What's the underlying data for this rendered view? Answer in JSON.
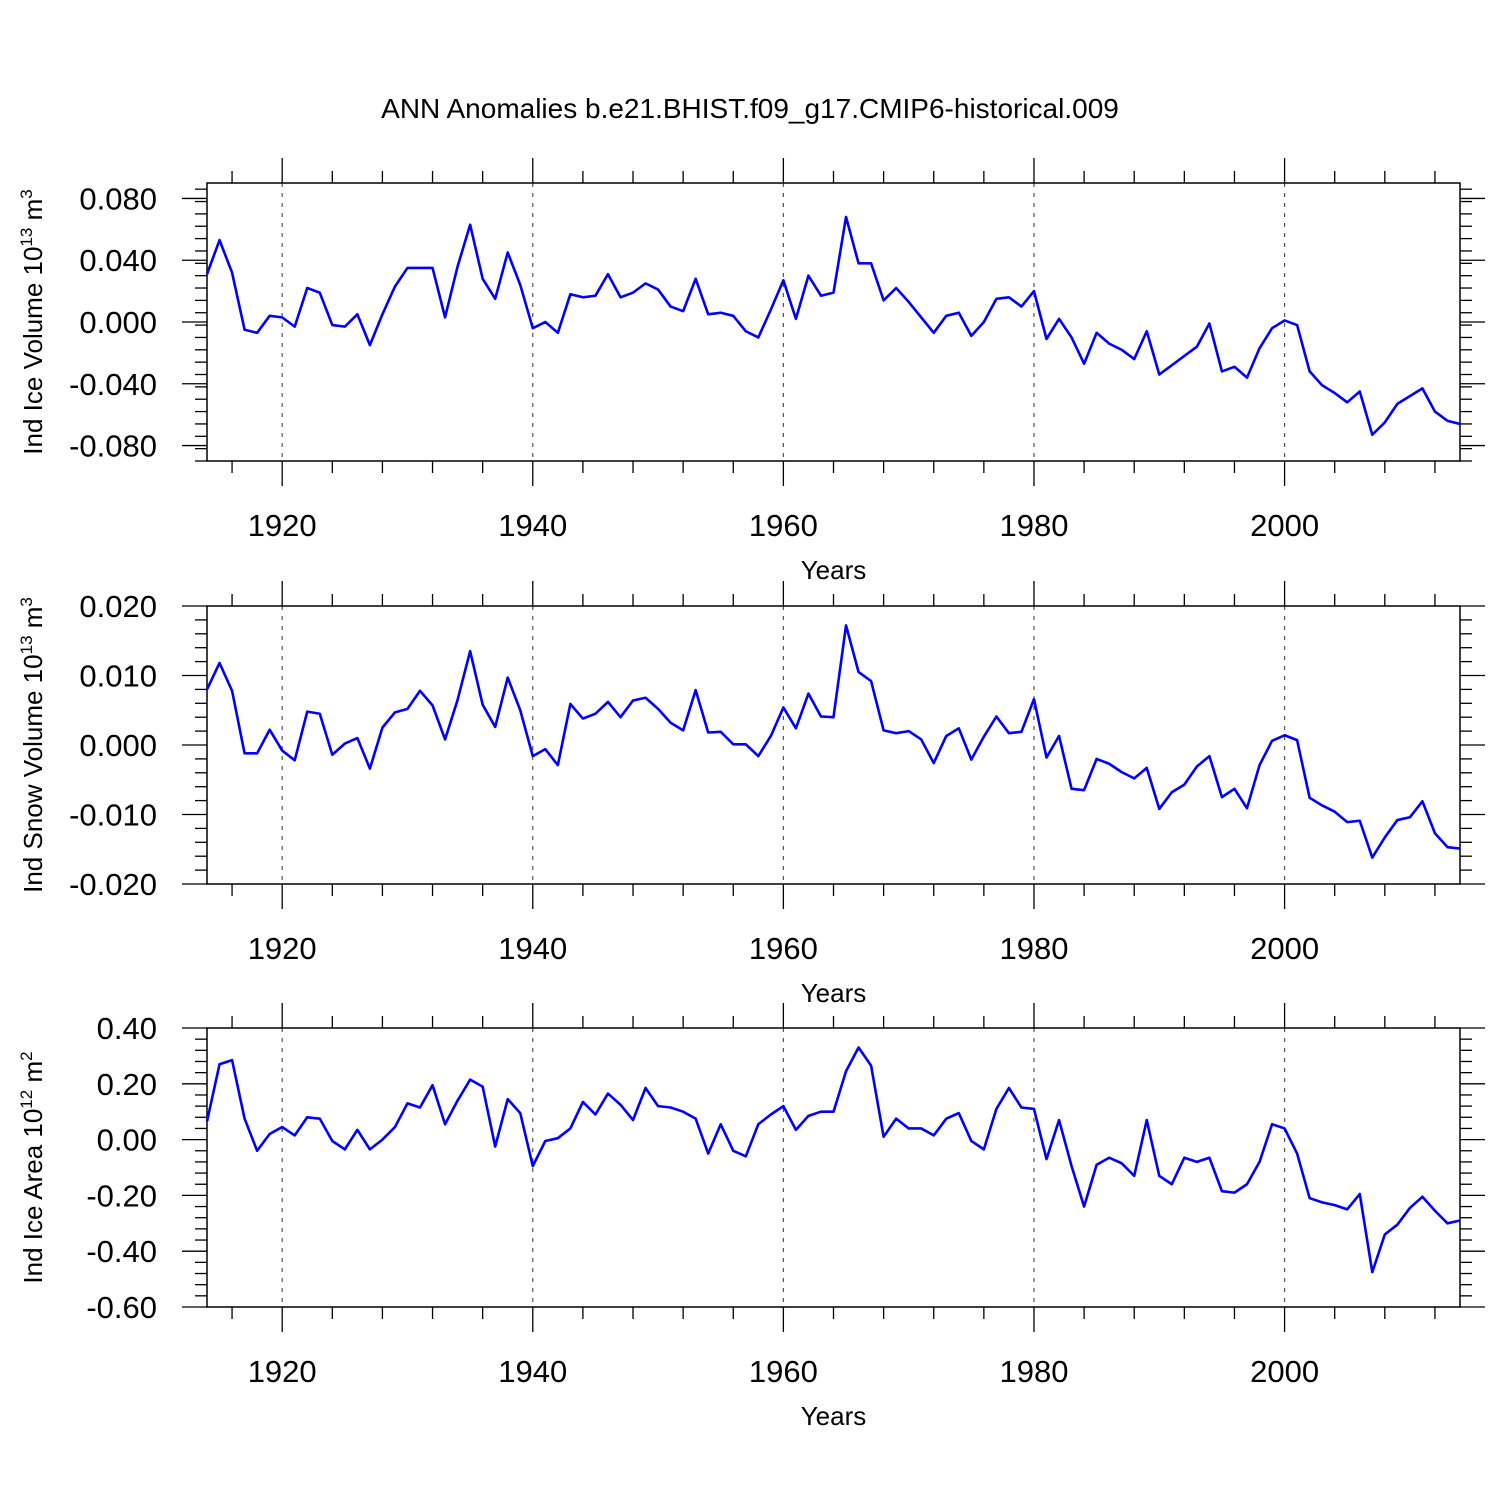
{
  "title": "ANN Anomalies b.e21.BHIST.f09_g17.CMIP6-historical.009",
  "series_color": "#0000ff",
  "chart_data": [
    {
      "type": "line",
      "ylabel_main": "Ind Ice Volume 10",
      "ylabel_sup": "13",
      "ylabel_unit": " m",
      "ylabel_unit_sup": "3",
      "xlabel": "Years",
      "xlim": [
        1914,
        2014
      ],
      "ylim": [
        -0.09,
        0.09
      ],
      "yticks": [
        -0.08,
        -0.04,
        0.0,
        0.04,
        0.08
      ],
      "ytick_labels": [
        "-0.080",
        "-0.040",
        "0.000",
        "0.040",
        "0.080"
      ],
      "xticks": [
        1920,
        1940,
        1960,
        1980,
        2000
      ],
      "xtick_labels": [
        "1920",
        "1940",
        "1960",
        "1980",
        "2000"
      ],
      "grid": "dashed vertical at major year ticks",
      "x_start": 1914,
      "values": [
        0.031,
        0.053,
        0.032,
        -0.005,
        -0.007,
        0.004,
        0.003,
        -0.003,
        0.022,
        0.019,
        -0.002,
        -0.003,
        0.005,
        -0.015,
        0.005,
        0.023,
        0.035,
        0.035,
        0.035,
        0.003,
        0.036,
        0.063,
        0.028,
        0.015,
        0.045,
        0.024,
        -0.004,
        0.0,
        -0.007,
        0.018,
        0.016,
        0.017,
        0.031,
        0.016,
        0.019,
        0.025,
        0.021,
        0.01,
        0.007,
        0.028,
        0.005,
        0.006,
        0.004,
        -0.006,
        -0.01,
        0.008,
        0.027,
        0.002,
        0.03,
        0.017,
        0.019,
        0.068,
        0.038,
        0.038,
        0.014,
        0.022,
        0.013,
        0.003,
        -0.007,
        0.004,
        0.006,
        -0.009,
        0.0,
        0.015,
        0.016,
        0.01,
        0.02,
        -0.011,
        0.002,
        -0.01,
        -0.027,
        -0.007,
        -0.014,
        -0.018,
        -0.024,
        -0.006,
        -0.034,
        -0.028,
        -0.022,
        -0.016,
        -0.001,
        -0.032,
        -0.029,
        -0.036,
        -0.017,
        -0.004,
        0.001,
        -0.002,
        -0.032,
        -0.041,
        -0.046,
        -0.052,
        -0.045,
        -0.073,
        -0.065,
        -0.053,
        -0.048,
        -0.043,
        -0.058,
        -0.064,
        -0.066
      ]
    },
    {
      "type": "line",
      "ylabel_main": "Ind Snow Volume 10",
      "ylabel_sup": "13",
      "ylabel_unit": " m",
      "ylabel_unit_sup": "3",
      "xlabel": "Years",
      "xlim": [
        1914,
        2014
      ],
      "ylim": [
        -0.02,
        0.02
      ],
      "yticks": [
        -0.02,
        -0.01,
        0.0,
        0.01,
        0.02
      ],
      "ytick_labels": [
        "-0.020",
        "-0.010",
        "0.000",
        "0.010",
        "0.020"
      ],
      "xticks": [
        1920,
        1940,
        1960,
        1980,
        2000
      ],
      "xtick_labels": [
        "1920",
        "1940",
        "1960",
        "1980",
        "2000"
      ],
      "grid": "dashed vertical at major year ticks",
      "x_start": 1914,
      "values": [
        0.008,
        0.0118,
        0.0078,
        -0.0012,
        -0.0012,
        0.0022,
        -0.0008,
        -0.0022,
        0.0048,
        0.0045,
        -0.0014,
        0.0002,
        0.001,
        -0.0034,
        0.0025,
        0.0047,
        0.0052,
        0.0078,
        0.0057,
        0.0008,
        0.0065,
        0.0135,
        0.0058,
        0.0026,
        0.0097,
        0.005,
        -0.0016,
        -0.0006,
        -0.0029,
        0.0059,
        0.0038,
        0.0045,
        0.0062,
        0.004,
        0.0064,
        0.0068,
        0.0052,
        0.0032,
        0.0021,
        0.0079,
        0.0018,
        0.0019,
        0.0001,
        0.0001,
        -0.0016,
        0.0013,
        0.0054,
        0.0024,
        0.0074,
        0.0041,
        0.004,
        0.0172,
        0.0105,
        0.0092,
        0.0021,
        0.0017,
        0.002,
        0.0008,
        -0.0026,
        0.0013,
        0.0024,
        -0.0021,
        0.0012,
        0.0041,
        0.0017,
        0.0019,
        0.0066,
        -0.0018,
        0.0013,
        -0.0063,
        -0.0065,
        -0.002,
        -0.0027,
        -0.0039,
        -0.0048,
        -0.0033,
        -0.0092,
        -0.0068,
        -0.0057,
        -0.0031,
        -0.0016,
        -0.0075,
        -0.0063,
        -0.0091,
        -0.0029,
        0.0006,
        0.0014,
        0.0007,
        -0.0076,
        -0.0087,
        -0.0096,
        -0.0111,
        -0.0109,
        -0.0162,
        -0.0133,
        -0.0108,
        -0.0104,
        -0.0081,
        -0.0127,
        -0.0147,
        -0.0149
      ]
    },
    {
      "type": "line",
      "ylabel_main": "Ind Ice Area 10",
      "ylabel_sup": "12",
      "ylabel_unit": " m",
      "ylabel_unit_sup": "2",
      "xlabel": "Years",
      "xlim": [
        1914,
        2014
      ],
      "ylim": [
        -0.6,
        0.4
      ],
      "yticks": [
        -0.6,
        -0.4,
        -0.2,
        0.0,
        0.2,
        0.4
      ],
      "ytick_labels": [
        "-0.60",
        "-0.40",
        "-0.20",
        "0.00",
        "0.20",
        "0.40"
      ],
      "xticks": [
        1920,
        1940,
        1960,
        1980,
        2000
      ],
      "xtick_labels": [
        "1920",
        "1940",
        "1960",
        "1980",
        "2000"
      ],
      "grid": "dashed vertical at major year ticks",
      "x_start": 1914,
      "values": [
        0.065,
        0.27,
        0.285,
        0.075,
        -0.04,
        0.02,
        0.045,
        0.015,
        0.08,
        0.075,
        -0.005,
        -0.035,
        0.035,
        -0.035,
        0.0,
        0.045,
        0.13,
        0.115,
        0.195,
        0.055,
        0.14,
        0.215,
        0.19,
        -0.025,
        0.145,
        0.095,
        -0.095,
        -0.005,
        0.005,
        0.04,
        0.135,
        0.09,
        0.165,
        0.125,
        0.07,
        0.185,
        0.12,
        0.115,
        0.1,
        0.075,
        -0.05,
        0.055,
        -0.04,
        -0.06,
        0.055,
        0.09,
        0.12,
        0.035,
        0.085,
        0.1,
        0.1,
        0.245,
        0.33,
        0.265,
        0.01,
        0.075,
        0.04,
        0.04,
        0.015,
        0.075,
        0.095,
        -0.005,
        -0.035,
        0.11,
        0.185,
        0.115,
        0.11,
        -0.07,
        0.07,
        -0.095,
        -0.24,
        -0.09,
        -0.065,
        -0.085,
        -0.13,
        0.07,
        -0.13,
        -0.16,
        -0.065,
        -0.08,
        -0.065,
        -0.185,
        -0.19,
        -0.16,
        -0.08,
        0.055,
        0.04,
        -0.05,
        -0.21,
        -0.225,
        -0.235,
        -0.25,
        -0.195,
        -0.475,
        -0.34,
        -0.305,
        -0.245,
        -0.205,
        -0.255,
        -0.3,
        -0.29
      ]
    }
  ]
}
